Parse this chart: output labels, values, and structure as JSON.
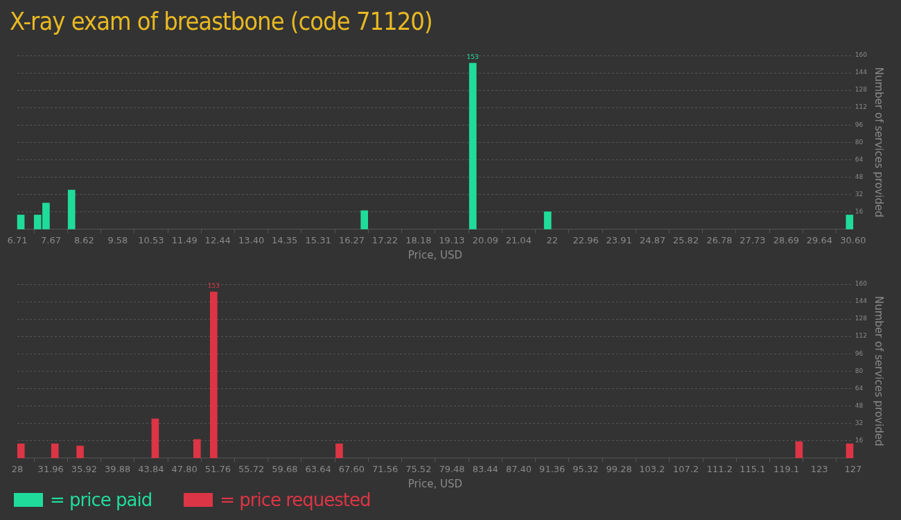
{
  "chart_data": [
    {
      "type": "bar",
      "title": "X-ray exam of breastbone (code 71120)",
      "xlabel": "Price, USD",
      "ylabel": "Number of services provided",
      "x": [
        6.81,
        7.29,
        7.53,
        8.26,
        16.63,
        19.73,
        21.87,
        30.5
      ],
      "series": [
        {
          "name": "= price paid",
          "color": "#20dc9b",
          "values": [
            13,
            13,
            24,
            36,
            17,
            153,
            16,
            13
          ],
          "value_labels": [
            null,
            null,
            null,
            null,
            null,
            "153",
            null,
            null
          ]
        }
      ],
      "xlim": [
        6.71,
        30.6
      ],
      "xticks": [
        {
          "value": 6.71,
          "label": "6.71"
        },
        {
          "value": 7.67,
          "label": "7.67"
        },
        {
          "value": 8.62,
          "label": "8.62"
        },
        {
          "value": 9.58,
          "label": "9.58"
        },
        {
          "value": 10.53,
          "label": "10.53"
        },
        {
          "value": 11.49,
          "label": "11.49"
        },
        {
          "value": 12.44,
          "label": "12.44"
        },
        {
          "value": 13.4,
          "label": "13.40"
        },
        {
          "value": 14.35,
          "label": "14.35"
        },
        {
          "value": 15.31,
          "label": "15.31"
        },
        {
          "value": 16.27,
          "label": "16.27"
        },
        {
          "value": 17.22,
          "label": "17.22"
        },
        {
          "value": 18.18,
          "label": "18.18"
        },
        {
          "value": 19.13,
          "label": "19.13"
        },
        {
          "value": 20.09,
          "label": "20.09"
        },
        {
          "value": 21.04,
          "label": "21.04"
        },
        22,
        {
          "value": 22.96,
          "label": "22.96"
        },
        {
          "value": 23.91,
          "label": "23.91"
        },
        {
          "value": 24.87,
          "label": "24.87"
        },
        {
          "value": 25.82,
          "label": "25.82"
        },
        {
          "value": 26.78,
          "label": "26.78"
        },
        {
          "value": 27.73,
          "label": "27.73"
        },
        {
          "value": 28.69,
          "label": "28.69"
        },
        {
          "value": 29.64,
          "label": "29.64"
        },
        {
          "value": 30.6,
          "label": "30.60"
        }
      ],
      "ylim": [
        0,
        160
      ],
      "yticks": [
        16,
        32,
        48,
        64,
        80,
        96,
        112,
        128,
        144,
        160
      ],
      "grid": "y",
      "legend": "bottom left"
    },
    {
      "type": "bar",
      "xlabel": "Price, USD",
      "ylabel": "Number of services provided",
      "x": [
        28.43,
        32.45,
        35.44,
        44.33,
        49.29,
        51.26,
        66.13,
        120.6,
        126.6
      ],
      "series": [
        {
          "name": "= price requested",
          "color": "#dc3545",
          "values": [
            13,
            13,
            11,
            36,
            17,
            153,
            13,
            15,
            13
          ],
          "value_labels": [
            null,
            null,
            null,
            null,
            null,
            "153",
            null,
            null,
            null
          ]
        }
      ],
      "xlim": [
        28,
        127
      ],
      "xticks": [
        28,
        {
          "value": 31.96,
          "label": "31.96"
        },
        {
          "value": 35.92,
          "label": "35.92"
        },
        {
          "value": 39.88,
          "label": "39.88"
        },
        {
          "value": 43.84,
          "label": "43.84"
        },
        {
          "value": 47.8,
          "label": "47.80"
        },
        {
          "value": 51.76,
          "label": "51.76"
        },
        {
          "value": 55.72,
          "label": "55.72"
        },
        {
          "value": 59.68,
          "label": "59.68"
        },
        {
          "value": 63.64,
          "label": "63.64"
        },
        {
          "value": 67.6,
          "label": "67.60"
        },
        {
          "value": 71.56,
          "label": "71.56"
        },
        {
          "value": 75.52,
          "label": "75.52"
        },
        {
          "value": 79.48,
          "label": "79.48"
        },
        {
          "value": 83.44,
          "label": "83.44"
        },
        {
          "value": 87.4,
          "label": "87.40"
        },
        {
          "value": 91.36,
          "label": "91.36"
        },
        {
          "value": 95.32,
          "label": "95.32"
        },
        {
          "value": 99.28,
          "label": "99.28"
        },
        103.2,
        107.2,
        111.2,
        115.1,
        119.1,
        123,
        127
      ],
      "ylim": [
        0,
        160
      ],
      "yticks": [
        16,
        32,
        48,
        64,
        80,
        96,
        112,
        128,
        144,
        160
      ],
      "grid": "y",
      "legend": "bottom left"
    }
  ]
}
